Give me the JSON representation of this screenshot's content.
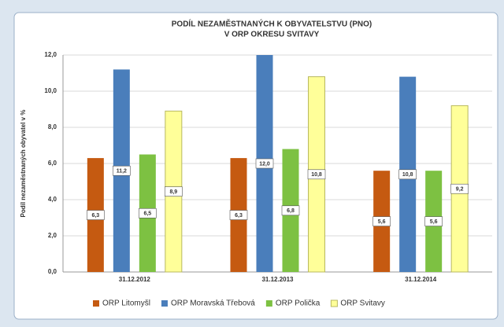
{
  "chart_data": {
    "type": "bar",
    "title": [
      "PODÍL NEZAMĚSTNANÝCH K OBYVATELSTVU (PNO)",
      "V ORP OKRESU SVITAVY"
    ],
    "y_label": "Podíl nezaměstnaných obyvatel v %",
    "categories": [
      "31.12.2012",
      "31.12.2013",
      "31.12.2014"
    ],
    "series": [
      {
        "name": "ORP Litomyšl",
        "color": "#c55a11",
        "values": [
          6.3,
          6.3,
          5.6
        ],
        "value_labels": [
          "6,3",
          "6,3",
          "5,6"
        ]
      },
      {
        "name": "ORP Moravská Třebová",
        "color": "#4a7ebb",
        "values": [
          11.2,
          12.0,
          10.8
        ],
        "value_labels": [
          "11,2",
          "12,0",
          "10,8"
        ]
      },
      {
        "name": "ORP Polička",
        "color": "#7dc142",
        "values": [
          6.5,
          6.8,
          5.6
        ],
        "value_labels": [
          "6,5",
          "6,8",
          "5,6"
        ]
      },
      {
        "name": "ORP Svitavy",
        "color": "#ffff99",
        "values": [
          8.9,
          10.8,
          9.2
        ],
        "value_labels": [
          "8,9",
          "10,8",
          "9,2"
        ]
      }
    ],
    "ylim": [
      0,
      12
    ],
    "yticks": [
      {
        "value": 0,
        "label": "0,0"
      },
      {
        "value": 2,
        "label": "2,0"
      },
      {
        "value": 4,
        "label": "4,0"
      },
      {
        "value": 6,
        "label": "6,0"
      },
      {
        "value": 8,
        "label": "8,0"
      },
      {
        "value": 10,
        "label": "10,0"
      },
      {
        "value": 12,
        "label": "12,0"
      }
    ],
    "grid": true,
    "legend": "bottom"
  }
}
